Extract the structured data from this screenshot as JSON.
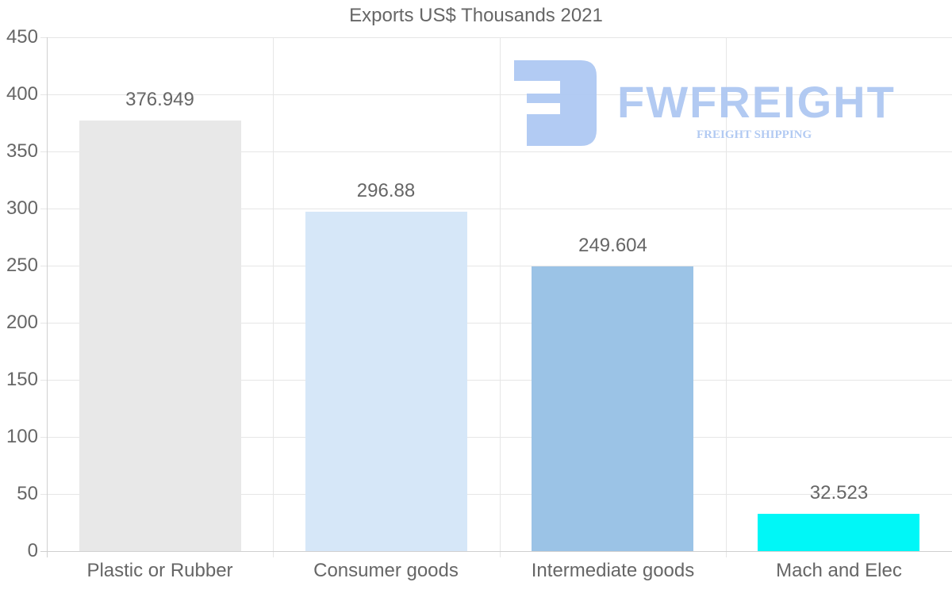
{
  "chart_data": {
    "type": "bar",
    "title": "Exports US$ Thousands 2021",
    "xlabel": "",
    "ylabel": "",
    "categories": [
      "Plastic or Rubber",
      "Consumer goods",
      "Intermediate goods",
      "Mach and Elec"
    ],
    "values": [
      376.949,
      296.88,
      249.604,
      32.523
    ],
    "value_labels": [
      "376.949",
      "296.88",
      "249.604",
      "32.523"
    ],
    "colors": [
      "#e8e8e8",
      "#d6e7f8",
      "#9bc3e6",
      "#00f7f7"
    ],
    "ylim": [
      0,
      450
    ],
    "yticks": [
      0,
      50,
      100,
      150,
      200,
      250,
      300,
      350,
      400,
      450
    ],
    "grid": true,
    "legend": "none"
  },
  "watermark": {
    "brand": "FWFREIGHT",
    "tagline": "FREIGHT SHIPPING",
    "color": "#aec8f2"
  }
}
